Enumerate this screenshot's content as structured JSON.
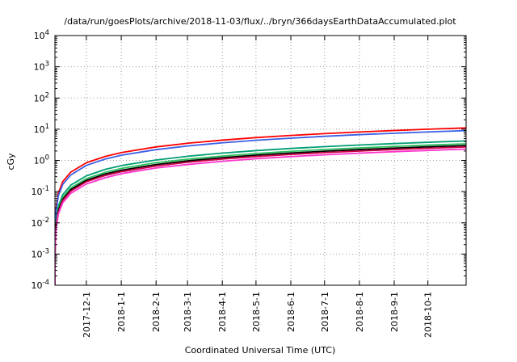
{
  "chart_data": {
    "type": "line",
    "title": "/data/run/goesPlots/archive/2018-11-03/flux/../bryn/366daysEarthDataAccumulated.plot",
    "xlabel": "Coordinated Universal Time (UTC)",
    "ylabel": "cGy",
    "y_scale": "log",
    "ylim": [
      0.0001,
      10000
    ],
    "grid": true,
    "legend": "none",
    "y_ticks": [
      {
        "label": "10^-4",
        "value": 0.0001
      },
      {
        "label": "10^-3",
        "value": 0.001
      },
      {
        "label": "10^-2",
        "value": 0.01
      },
      {
        "label": "10^-1",
        "value": 0.1
      },
      {
        "label": "10^0",
        "value": 1
      },
      {
        "label": "10^1",
        "value": 10
      },
      {
        "label": "10^2",
        "value": 100
      },
      {
        "label": "10^3",
        "value": 1000
      },
      {
        "label": "10^4",
        "value": 10000
      }
    ],
    "x_range_days": [
      0,
      366
    ],
    "x_ticks": [
      {
        "label": "2017-12-1",
        "day": 28
      },
      {
        "label": "2018-1-1",
        "day": 59
      },
      {
        "label": "2018-2-1",
        "day": 90
      },
      {
        "label": "2018-3-1",
        "day": 118
      },
      {
        "label": "2018-4-1",
        "day": 149
      },
      {
        "label": "2018-5-1",
        "day": 179
      },
      {
        "label": "2018-6-1",
        "day": 210
      },
      {
        "label": "2018-7-1",
        "day": 240
      },
      {
        "label": "2018-8-1",
        "day": 271
      },
      {
        "label": "2018-9-1",
        "day": 302
      },
      {
        "label": "2018-10-1",
        "day": 332
      }
    ],
    "x_days": [
      0.001,
      0.02,
      0.05,
      0.1,
      0.3,
      1,
      3,
      7,
      14,
      28,
      45,
      60,
      90,
      120,
      150,
      180,
      210,
      240,
      270,
      300,
      330,
      366
    ],
    "series": [
      {
        "name": "red",
        "color": "#ff0000",
        "values": [
          0.0001,
          0.0006,
          0.0015,
          0.003,
          0.009,
          0.03,
          0.09,
          0.21,
          0.42,
          0.84,
          1.35,
          1.8,
          2.7,
          3.6,
          4.5,
          5.4,
          6.3,
          7.2,
          8.1,
          9.0,
          9.9,
          11
        ]
      },
      {
        "name": "blue",
        "color": "#3a5fe5",
        "values": [
          0.0001,
          0.00049,
          0.0012,
          0.0025,
          0.0074,
          0.025,
          0.074,
          0.17,
          0.34,
          0.69,
          1.11,
          1.48,
          2.21,
          2.95,
          3.69,
          4.43,
          5.16,
          5.9,
          6.64,
          7.38,
          8.11,
          9.0
        ]
      },
      {
        "name": "teal",
        "color": "#009e73",
        "values": [
          0.0001,
          0.00023,
          0.00057,
          0.0011,
          0.0034,
          0.011,
          0.034,
          0.08,
          0.16,
          0.32,
          0.52,
          0.69,
          1.03,
          1.38,
          1.72,
          2.07,
          2.41,
          2.75,
          3.1,
          3.44,
          3.79,
          4.2
        ]
      },
      {
        "name": "green",
        "color": "#2dbf5e",
        "values": [
          0.0001,
          0.00019,
          0.00046,
          0.00093,
          0.0028,
          0.0093,
          0.028,
          0.065,
          0.13,
          0.26,
          0.42,
          0.56,
          0.84,
          1.11,
          1.39,
          1.67,
          1.95,
          2.23,
          2.51,
          2.79,
          3.07,
          3.4
        ]
      },
      {
        "name": "black",
        "color": "#000000",
        "values": [
          0.0001,
          0.00016,
          0.00041,
          0.00082,
          0.0025,
          0.0082,
          0.025,
          0.057,
          0.115,
          0.23,
          0.37,
          0.49,
          0.74,
          0.98,
          1.23,
          1.48,
          1.72,
          1.97,
          2.21,
          2.46,
          2.7,
          3.0
        ]
      },
      {
        "name": "crimson",
        "color": "#cc0044",
        "values": [
          0.0001,
          0.00015,
          0.00037,
          0.00074,
          0.0022,
          0.0074,
          0.022,
          0.052,
          0.103,
          0.207,
          0.33,
          0.44,
          0.66,
          0.89,
          1.11,
          1.33,
          1.55,
          1.77,
          1.99,
          2.21,
          2.43,
          2.7
        ]
      },
      {
        "name": "magenta",
        "color": "#ff33cc",
        "values": [
          0.0001,
          0.00013,
          0.00031,
          0.00063,
          0.0019,
          0.0063,
          0.019,
          0.044,
          0.088,
          0.176,
          0.28,
          0.38,
          0.57,
          0.75,
          0.94,
          1.13,
          1.32,
          1.51,
          1.7,
          1.89,
          2.07,
          2.3
        ]
      }
    ]
  }
}
